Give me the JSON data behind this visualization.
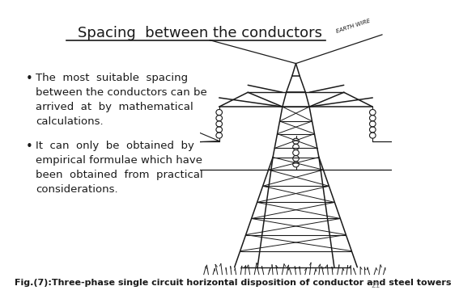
{
  "title": "Spacing  between the conductors",
  "bullet1_lines": [
    "The  most  suitable  spacing",
    "between the conductors can be",
    "arrived  at  by  mathematical",
    "calculations."
  ],
  "bullet2_lines": [
    "It  can  only  be  obtained  by",
    "empirical formulae which have",
    "been  obtained  from  practical",
    "considerations."
  ],
  "caption": "Fig.(7):Three-phase single circuit horizontal disposition of conductor and steel towers",
  "page_number": "21",
  "bg_color": "#ffffff",
  "text_color": "#1a1a1a",
  "title_color": "#1a1a1a",
  "title_fontsize": 13,
  "body_fontsize": 9.5,
  "caption_fontsize": 8.0
}
